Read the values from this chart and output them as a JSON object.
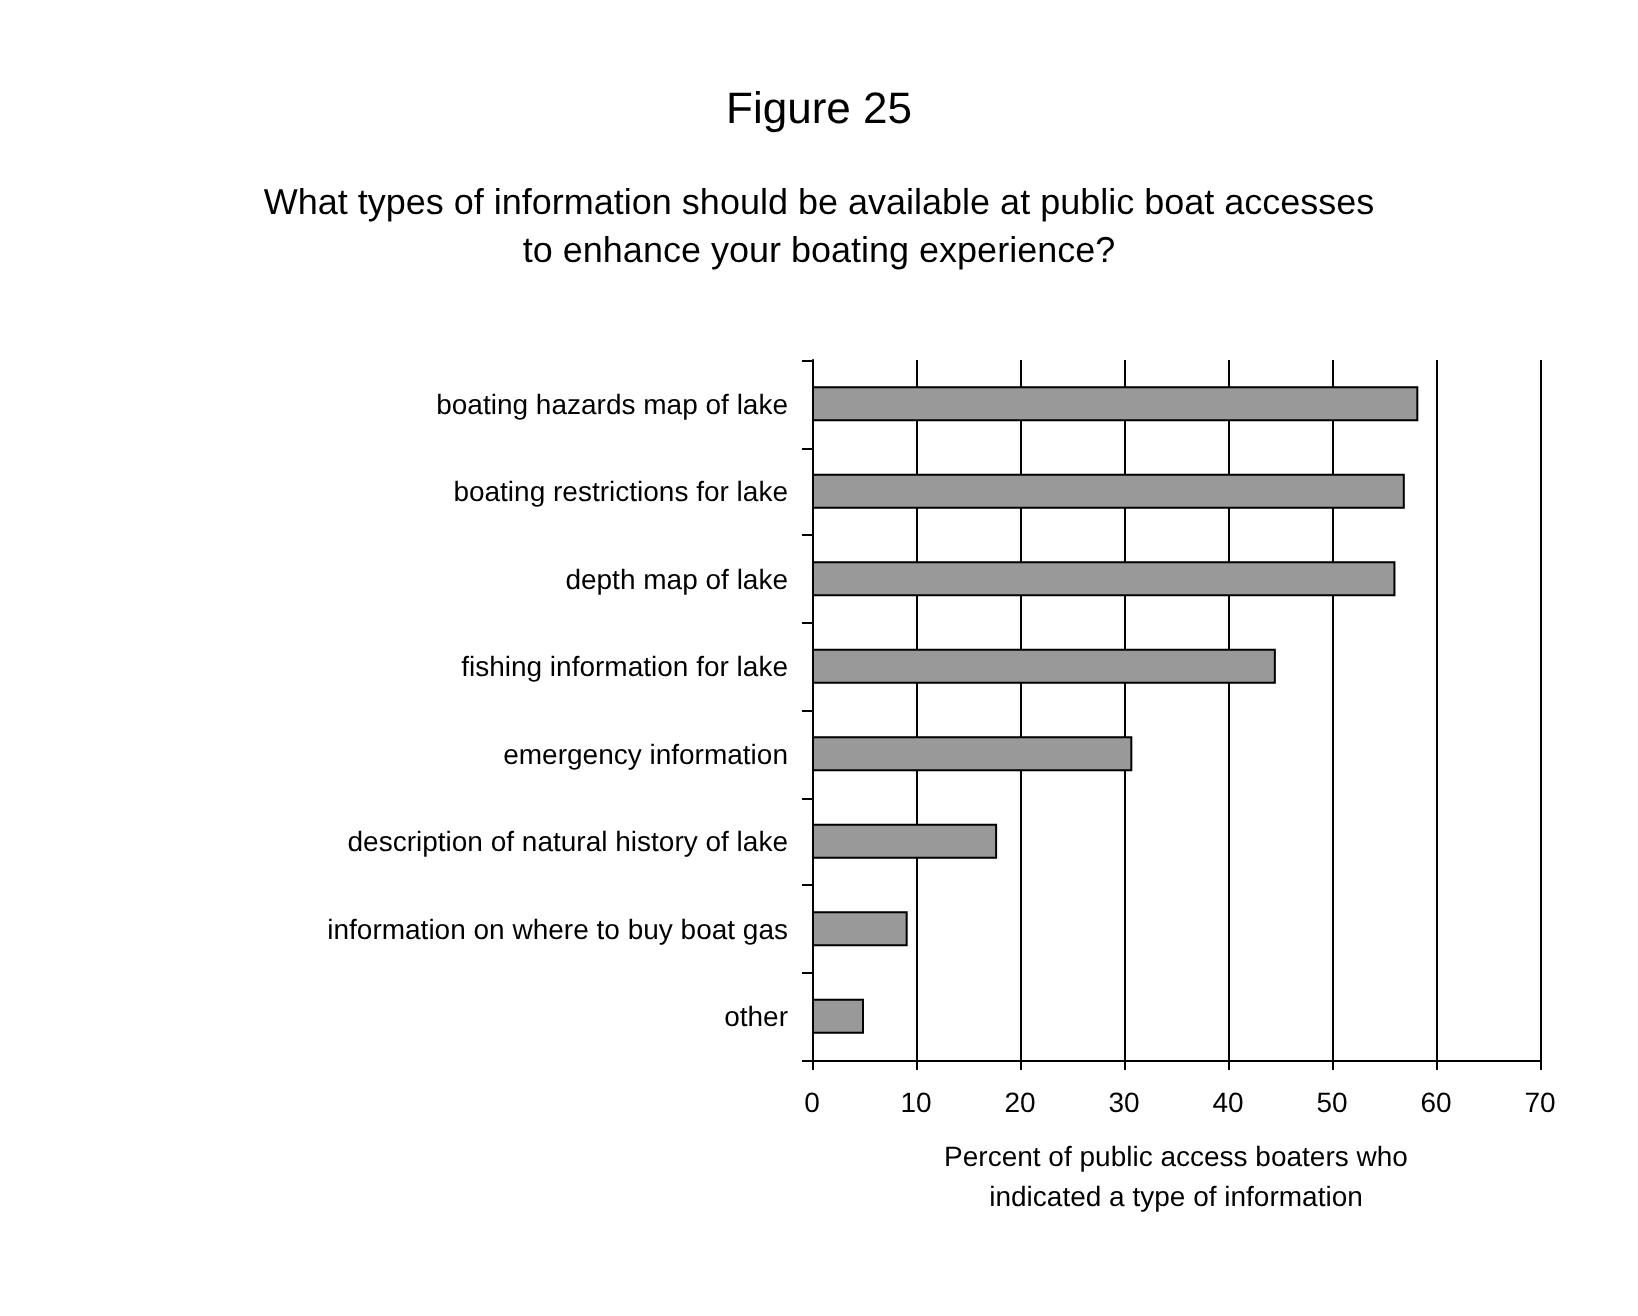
{
  "chart_data": {
    "type": "bar",
    "orientation": "horizontal",
    "title": "Figure 25",
    "subtitle": "What types of information should be available at public boat accesses\nto enhance your boating experience?",
    "xlabel": "Percent of public access boaters who\nindicated a type of information",
    "categories": [
      "boating hazards map of lake",
      "boating restrictions for lake",
      "depth map of lake",
      "fishing information for lake",
      "emergency information",
      "description of natural history of lake",
      "information on where to buy boat gas",
      "other"
    ],
    "values": [
      58.3,
      57.0,
      56.1,
      44.6,
      30.8,
      17.8,
      9.2,
      5.0
    ],
    "color": "#999999",
    "xlim": [
      0,
      70
    ],
    "xticks": [
      0,
      10,
      20,
      30,
      40,
      50,
      60,
      70
    ],
    "grid": "x"
  }
}
